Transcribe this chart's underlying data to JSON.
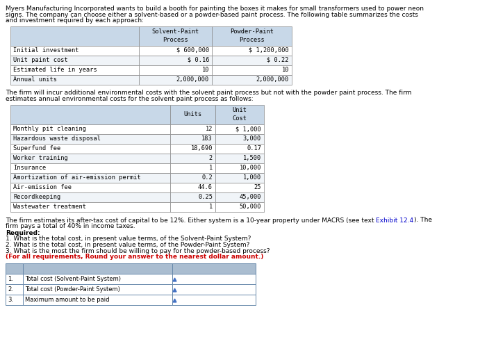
{
  "intro_text_lines": [
    "Myers Manufacturing Incorporated wants to build a booth for painting the boxes it makes for small transformers used to power neon",
    "signs. The company can choose either a solvent-based or a powder-based paint process. The following table summarizes the costs",
    "and investment required by each approach:"
  ],
  "table1_headers": [
    "",
    "Solvent-Paint\nProcess",
    "Powder-Paint\nProcess"
  ],
  "table1_rows": [
    [
      "Initial investment",
      "$ 600,000",
      "$ 1,200,000"
    ],
    [
      "Unit paint cost",
      "$ 0.16",
      "$ 0.22"
    ],
    [
      "Estimated life in years",
      "10",
      "10"
    ],
    [
      "Annual units",
      "2,000,000",
      "2,000,000"
    ]
  ],
  "middle_text_lines": [
    "The firm will incur additional environmental costs with the solvent paint process but not with the powder paint process. The firm",
    "estimates annual environmental costs for the solvent paint process as follows:"
  ],
  "table2_headers": [
    "",
    "Units",
    "Unit\nCost"
  ],
  "table2_rows": [
    [
      "Monthly pit cleaning",
      "12",
      "$ 1,000"
    ],
    [
      "Hazardous waste disposal",
      "183",
      "3,000"
    ],
    [
      "Superfund fee",
      "18,690",
      "0.17"
    ],
    [
      "Worker training",
      "2",
      "1,500"
    ],
    [
      "Insurance",
      "1",
      "10,000"
    ],
    [
      "Amortization of air-emission permit",
      "0.2",
      "1,000"
    ],
    [
      "Air-emission fee",
      "44.6",
      "25"
    ],
    [
      "Recordkeeping",
      "0.25",
      "45,000"
    ],
    [
      "Wastewater treatment",
      "1",
      "50,000"
    ]
  ],
  "bottom_line1_before_link": "The firm estimates its after-tax cost of capital to be 12%. Either system is a 10-year property under MACRS (see text ",
  "bottom_line1_link": "Exhibit 12.4",
  "bottom_line1_after_link": "). The",
  "bottom_line2": "firm pays a total of 40% in income taxes.",
  "required_label": "Required:",
  "required_lines": [
    "1. What is the total cost, in present value terms, of the Solvent-Paint System?",
    "2. What is the total cost, in present value terms, of the Powder-Paint System?",
    "3. What is the most the firm should be willing to pay for the powder-based process?"
  ],
  "red_text": "(For all requirements, Round your answer to the nearest dollar amount.)",
  "answer_table_rows": [
    [
      "1.",
      "Total cost (Solvent-Paint System)",
      ""
    ],
    [
      "2.",
      "Total cost (Powder-Paint System)",
      ""
    ],
    [
      "3.",
      "Maximum amount to be paid",
      ""
    ]
  ],
  "header_bg": "#c8d8e8",
  "row_bg_light": "#ffffff",
  "row_bg_alt": "#f0f4f8",
  "answer_header_color": "#aabdd0",
  "link_color": "#0000cc",
  "red_color": "#cc0000",
  "text_color": "#000000",
  "mono_font": "monospace",
  "sans_font": "sans-serif"
}
